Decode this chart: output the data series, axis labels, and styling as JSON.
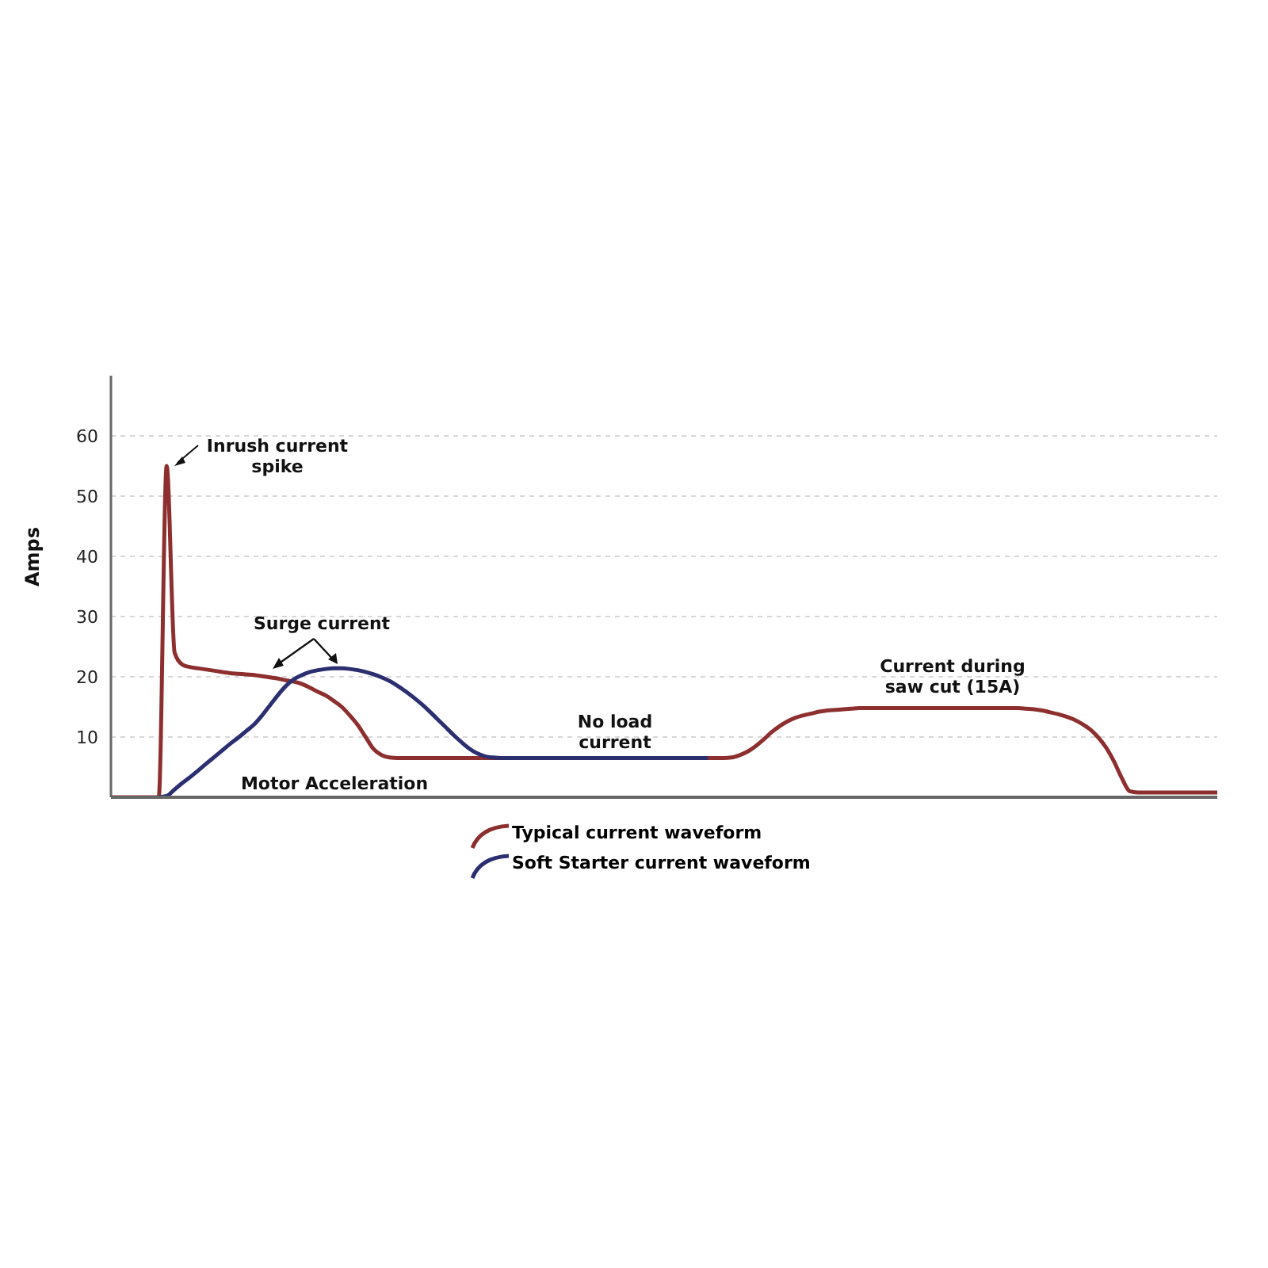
{
  "chart_data": {
    "type": "line",
    "ylabel": "Amps",
    "categories": [
      null,
      null,
      null,
      null,
      null,
      null,
      null,
      null,
      null,
      null,
      null,
      null,
      null,
      null,
      null,
      null,
      null,
      null,
      null,
      null,
      null,
      null,
      null,
      null,
      null,
      null,
      null,
      null,
      null,
      null,
      null,
      null,
      null,
      null,
      null,
      null,
      null,
      null,
      null,
      null,
      null,
      null,
      null,
      null,
      null,
      null,
      null,
      null,
      null,
      null,
      null,
      null,
      null,
      null,
      null,
      null,
      null,
      null,
      null,
      null,
      null,
      null,
      null,
      null,
      null,
      null,
      null,
      null,
      null,
      null,
      null,
      null,
      null,
      null,
      null,
      null,
      null,
      null,
      null,
      null,
      null,
      null,
      null,
      null,
      null,
      null,
      null,
      null,
      null,
      null,
      null,
      null,
      null,
      null,
      null,
      null,
      null,
      null,
      null,
      null,
      null,
      null,
      null,
      null,
      null,
      null,
      null,
      null,
      null,
      null,
      null,
      null,
      null,
      null,
      null,
      null,
      null,
      null,
      null,
      null,
      null,
      null,
      null,
      null,
      null,
      null,
      null,
      null,
      null,
      null,
      null,
      null,
      null,
      null,
      null,
      null,
      null,
      null,
      null,
      null
    ],
    "series": [
      {
        "name": "Typical current waveform",
        "color": "#8e2f2f",
        "values": [
          0,
          0,
          0,
          0,
          0,
          0,
          0,
          55,
          24,
          22,
          21.6,
          21.4,
          21.2,
          21,
          20.8,
          20.6,
          20.5,
          20.4,
          20.3,
          20.1,
          19.9,
          19.7,
          19.4,
          19.2,
          18.8,
          18.2,
          17.5,
          16.9,
          16,
          15,
          13.6,
          12,
          10,
          8,
          7,
          6.6,
          6.5,
          6.5,
          6.5,
          6.5,
          6.5,
          6.5,
          6.5,
          6.5,
          6.5,
          6.5,
          6.5,
          6.5,
          6.5,
          6.5,
          6.5,
          6.5,
          6.5,
          6.5,
          6.5,
          6.5,
          6.5,
          6.5,
          6.5,
          6.5,
          6.5,
          6.5,
          6.5,
          6.5,
          6.5,
          6.5,
          6.5,
          6.5,
          6.5,
          6.5,
          6.5,
          6.5,
          6.5,
          6.5,
          6.5,
          6.5,
          6.5,
          6.5,
          6.6,
          7,
          7.6,
          8.5,
          9.6,
          10.8,
          11.8,
          12.6,
          13.2,
          13.6,
          13.9,
          14.2,
          14.4,
          14.5,
          14.6,
          14.7,
          14.8,
          14.8,
          14.8,
          14.8,
          14.8,
          14.8,
          14.8,
          14.8,
          14.8,
          14.8,
          14.8,
          14.8,
          14.8,
          14.8,
          14.8,
          14.8,
          14.8,
          14.8,
          14.8,
          14.8,
          14.8,
          14.7,
          14.6,
          14.4,
          14.1,
          13.8,
          13.4,
          12.9,
          12.2,
          11.3,
          10,
          8.3,
          6,
          3.2,
          1,
          0.8,
          0.8,
          0.8,
          0.8,
          0.8,
          0.8,
          0.8,
          0.8,
          0.8,
          0.8,
          0.8
        ]
      },
      {
        "name": "Soft Starter current waveform",
        "color": "#2b2f70",
        "values": [
          null,
          null,
          null,
          null,
          null,
          null,
          0,
          0.2,
          1.3,
          2.4,
          3.4,
          4.5,
          5.6,
          6.7,
          7.8,
          8.9,
          9.9,
          11,
          12.1,
          13.6,
          15.3,
          17,
          18.5,
          19.6,
          20.3,
          20.8,
          21.1,
          21.3,
          21.4,
          21.4,
          21.3,
          21.1,
          20.8,
          20.4,
          19.9,
          19.3,
          18.5,
          17.6,
          16.6,
          15.5,
          14.3,
          13,
          11.7,
          10.4,
          9.2,
          8.1,
          7.3,
          6.8,
          6.6,
          6.5,
          6.5,
          6.5,
          6.5,
          6.5,
          6.5,
          6.5,
          6.5,
          6.5,
          6.5,
          6.5,
          6.5,
          6.5,
          6.5,
          6.5,
          6.5,
          6.5,
          6.5,
          6.5,
          6.5,
          6.5,
          6.5,
          6.5,
          6.5,
          6.5,
          6.5,
          6.5,
          null,
          null,
          null,
          null,
          null,
          null,
          null,
          null,
          null,
          null,
          null,
          null,
          null,
          null,
          null,
          null,
          null,
          null,
          null,
          null,
          null,
          null,
          null,
          null,
          null,
          null,
          null,
          null,
          null,
          null,
          null,
          null,
          null,
          null,
          null,
          null,
          null,
          null,
          null,
          null,
          null,
          null,
          null,
          null,
          null,
          null,
          null,
          null,
          null,
          null,
          null,
          null,
          null,
          null,
          null,
          null,
          null,
          null,
          null,
          null,
          null,
          null,
          null,
          null
        ]
      }
    ],
    "ylim": [
      0,
      70
    ],
    "yticks": [
      10,
      20,
      30,
      40,
      50,
      60
    ],
    "grid": "y",
    "tick_labels": "y",
    "legend": "bottom",
    "marker": "none",
    "line_style": "solid",
    "annotations": [
      "Inrush current spike",
      "Surge current",
      "Motor Acceleration",
      "No load current",
      "Current during saw cut (15A)"
    ]
  }
}
